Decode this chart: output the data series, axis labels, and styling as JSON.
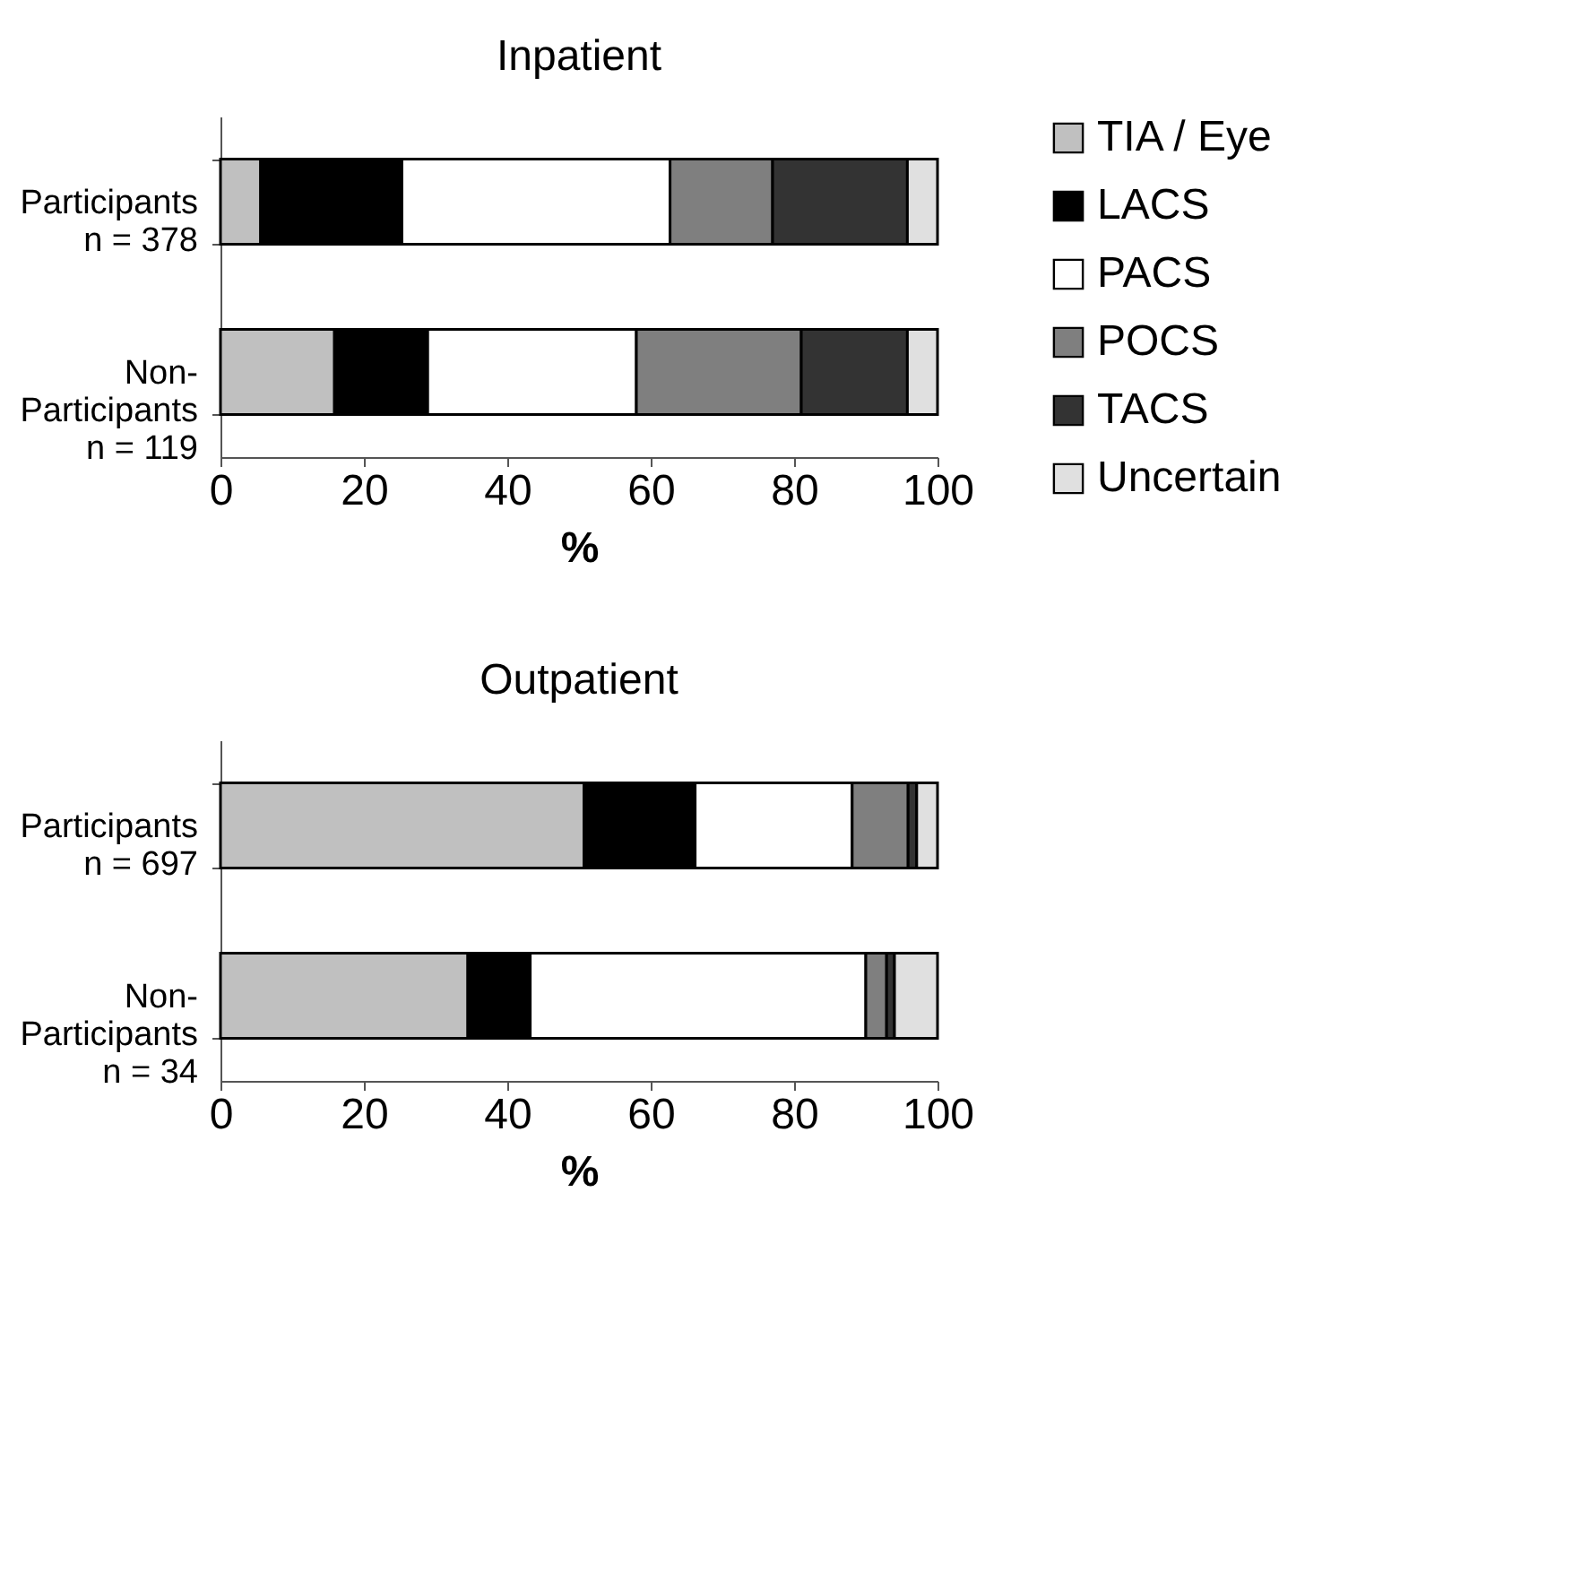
{
  "chart_data": [
    {
      "type": "bar",
      "title": "Inpatient",
      "xlabel": "%",
      "orientation": "horizontal",
      "stacked": true,
      "legend": "right",
      "categories": [
        "Participants\nn = 378",
        "Non-\nParticipants\nn = 119"
      ],
      "xlim": [
        0,
        100
      ],
      "xticks": [
        0,
        20,
        40,
        60,
        80,
        100
      ],
      "series": [
        {
          "name": "TIA / Eye",
          "color": "#c0c0c0",
          "values": [
            5.6,
            15.9
          ]
        },
        {
          "name": "LACS",
          "color": "#000000",
          "values": [
            19.7,
            13.0
          ]
        },
        {
          "name": "PACS",
          "color": "#ffffff",
          "values": [
            37.4,
            29.1
          ]
        },
        {
          "name": "POCS",
          "color": "#7f7f7f",
          "values": [
            14.3,
            23.0
          ]
        },
        {
          "name": "TACS",
          "color": "#333333",
          "values": [
            18.8,
            14.8
          ]
        },
        {
          "name": "Uncertain",
          "color": "#e0e0e0",
          "values": [
            4.2,
            4.2
          ]
        }
      ]
    },
    {
      "type": "bar",
      "title": "Outpatient",
      "xlabel": "%",
      "orientation": "horizontal",
      "stacked": true,
      "legend": "right",
      "categories": [
        "Participants\nn = 697",
        "Non-\nParticipants\nn = 34"
      ],
      "xlim": [
        0,
        100
      ],
      "xticks": [
        0,
        20,
        40,
        60,
        80,
        100
      ],
      "series": [
        {
          "name": "TIA / Eye",
          "color": "#c0c0c0",
          "values": [
            50.7,
            34.5
          ]
        },
        {
          "name": "LACS",
          "color": "#000000",
          "values": [
            15.5,
            8.7
          ]
        },
        {
          "name": "PACS",
          "color": "#ffffff",
          "values": [
            21.9,
            46.8
          ]
        },
        {
          "name": "POCS",
          "color": "#7f7f7f",
          "values": [
            7.8,
            2.9
          ]
        },
        {
          "name": "TACS",
          "color": "#333333",
          "values": [
            1.2,
            1.1
          ]
        },
        {
          "name": "Uncertain",
          "color": "#e0e0e0",
          "values": [
            2.9,
            6.0
          ]
        }
      ]
    }
  ]
}
